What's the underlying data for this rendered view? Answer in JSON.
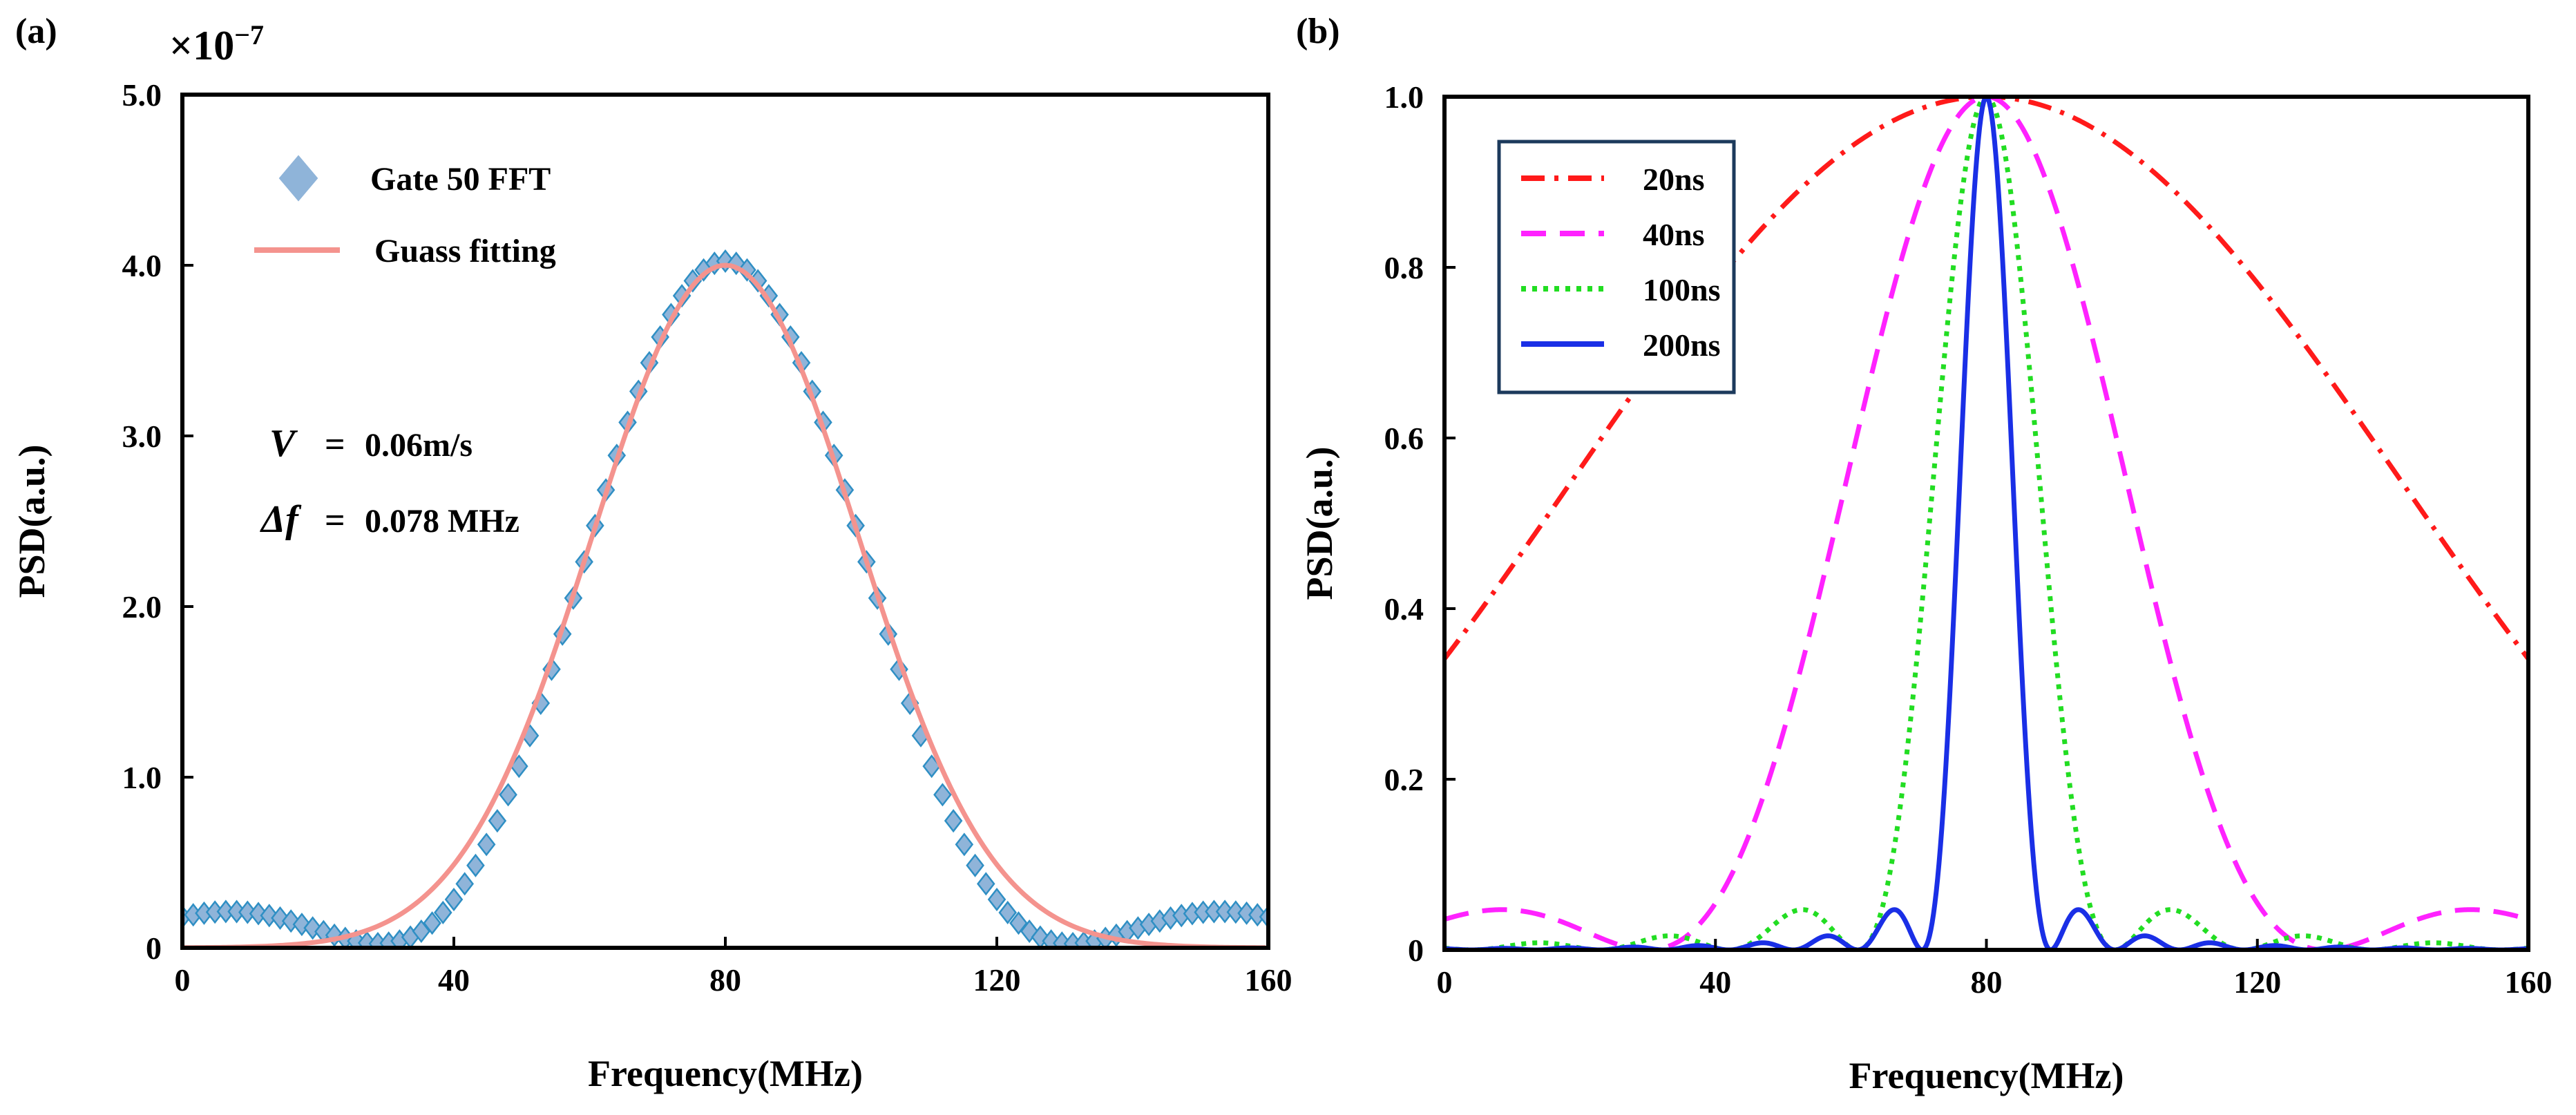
{
  "chart_data": [
    {
      "panel_label": "(a)",
      "type": "scatter+line",
      "xlabel": "Frequency(MHz)",
      "ylabel": "PSD(a.u.)",
      "xlim": [
        0,
        160
      ],
      "ylim": [
        0,
        5.0
      ],
      "x_ticks": [
        0,
        40,
        80,
        120,
        160
      ],
      "y_ticks": [
        0,
        1.0,
        2.0,
        3.0,
        4.0,
        5.0
      ],
      "y_tick_labels": [
        "0",
        "1.0",
        "2.0",
        "3.0",
        "4.0",
        "5.0"
      ],
      "y_scale_prefix": "×10",
      "y_scale_exp": "−7",
      "legend_position": "top-left",
      "series": [
        {
          "name": "Gate 50 FFT",
          "kind": "markers",
          "marker": "diamond",
          "color": "#8fb4d9",
          "edge_color": "#2f8fc4",
          "model": {
            "form": "sinc-squared",
            "center": 80,
            "peak": 4.0,
            "first_null_offset": 51,
            "x_step": 1.6
          }
        },
        {
          "name": "Guass fitting",
          "kind": "line",
          "color": "#f4938e",
          "model": {
            "form": "gaussian",
            "center": 80,
            "peak": 4.0,
            "sigma": 19.5
          }
        }
      ],
      "annotations": [
        {
          "lhs": "V",
          "eq": "=",
          "rhs": "0.06m/s"
        },
        {
          "lhs": "Δf",
          "eq": "=",
          "rhs": "0.078 MHz"
        }
      ]
    },
    {
      "panel_label": "(b)",
      "type": "line",
      "xlabel": "Frequency(MHz)",
      "ylabel": "PSD(a.u.)",
      "xlim": [
        0,
        160
      ],
      "ylim": [
        0,
        1.0
      ],
      "x_ticks": [
        0,
        40,
        80,
        120,
        160
      ],
      "y_ticks": [
        0,
        0.2,
        0.4,
        0.6,
        0.8,
        1.0
      ],
      "y_tick_labels": [
        "0",
        "0.2",
        "0.4",
        "0.6",
        "0.8",
        "1.0"
      ],
      "legend_position": "top-left",
      "series": [
        {
          "name": "20ns",
          "color": "#ff1a1a",
          "dash": "dash-dot",
          "model": {
            "form": "sinc-squared",
            "center": 80,
            "peak": 1.0,
            "first_null_offset": 148
          }
        },
        {
          "name": "40ns",
          "color": "#ff22ff",
          "dash": "dashed",
          "model": {
            "form": "sinc-squared",
            "center": 80,
            "peak": 1.0,
            "first_null_offset": 50
          }
        },
        {
          "name": "100ns",
          "color": "#22dd22",
          "dash": "dotted",
          "model": {
            "form": "sinc-squared",
            "center": 80,
            "peak": 1.0,
            "first_null_offset": 19
          }
        },
        {
          "name": "200ns",
          "color": "#1a2fe6",
          "dash": "solid",
          "model": {
            "form": "sinc-squared",
            "center": 80,
            "peak": 1.0,
            "first_null_offset": 9.5
          }
        }
      ]
    }
  ]
}
